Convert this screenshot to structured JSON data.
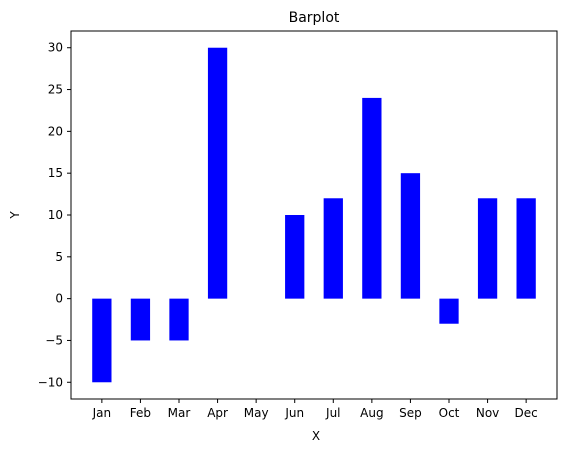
{
  "chart_data": {
    "type": "bar",
    "title": "Barplot",
    "xlabel": "X",
    "ylabel": "Y",
    "categories": [
      "Jan",
      "Feb",
      "Mar",
      "Apr",
      "May",
      "Jun",
      "Jul",
      "Aug",
      "Sep",
      "Oct",
      "Nov",
      "Dec"
    ],
    "values": [
      -10,
      -5,
      -5,
      30,
      0,
      10,
      12,
      24,
      15,
      -3,
      12,
      12
    ],
    "ylim": [
      -12,
      32
    ],
    "yticks": [
      -10,
      -5,
      0,
      5,
      10,
      15,
      20,
      25,
      30
    ],
    "bar_color": "#0000ff",
    "grid": false,
    "legend": "none"
  }
}
